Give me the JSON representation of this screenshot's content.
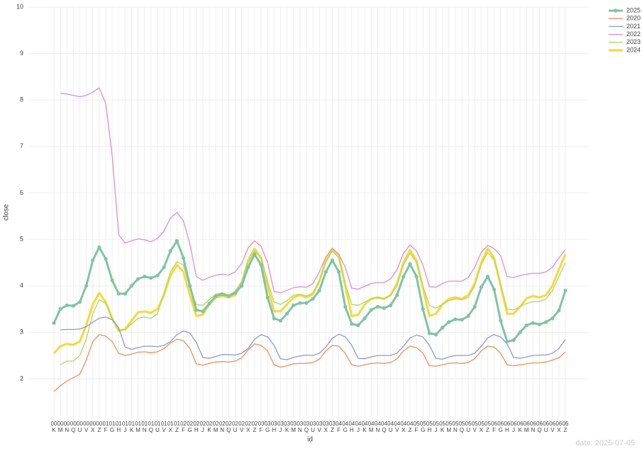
{
  "chart_data": {
    "type": "line",
    "xlabel": "id",
    "ylabel": "close",
    "watermark": "date: 2025-07-05",
    "ylim": [
      1.1,
      10
    ],
    "yticks": [
      2,
      3,
      4,
      5,
      6,
      7,
      8,
      9,
      10
    ],
    "grid": true,
    "legend": "top-right",
    "categories": [
      [
        "00",
        "K"
      ],
      [
        "00",
        "M"
      ],
      [
        "00",
        "N"
      ],
      [
        "00",
        "Q"
      ],
      [
        "00",
        "U"
      ],
      [
        "00",
        "V"
      ],
      [
        "00",
        "X"
      ],
      [
        "00",
        "Z"
      ],
      [
        "01",
        "F"
      ],
      [
        "01",
        "G"
      ],
      [
        "01",
        "H"
      ],
      [
        "01",
        "J"
      ],
      [
        "01",
        "K"
      ],
      [
        "01",
        "M"
      ],
      [
        "01",
        "N"
      ],
      [
        "01",
        "Q"
      ],
      [
        "01",
        "U"
      ],
      [
        "01",
        "V"
      ],
      [
        "01",
        "X"
      ],
      [
        "01",
        "Z"
      ],
      [
        "02",
        "F"
      ],
      [
        "02",
        "G"
      ],
      [
        "02",
        "H"
      ],
      [
        "02",
        "J"
      ],
      [
        "02",
        "K"
      ],
      [
        "02",
        "M"
      ],
      [
        "02",
        "N"
      ],
      [
        "02",
        "Q"
      ],
      [
        "02",
        "U"
      ],
      [
        "02",
        "V"
      ],
      [
        "02",
        "X"
      ],
      [
        "02",
        "Z"
      ],
      [
        "03",
        "F"
      ],
      [
        "03",
        "G"
      ],
      [
        "03",
        "H"
      ],
      [
        "03",
        "J"
      ],
      [
        "03",
        "K"
      ],
      [
        "03",
        "M"
      ],
      [
        "03",
        "N"
      ],
      [
        "03",
        "Q"
      ],
      [
        "03",
        "U"
      ],
      [
        "03",
        "V"
      ],
      [
        "03",
        "X"
      ],
      [
        "03",
        "Z"
      ],
      [
        "04",
        "F"
      ],
      [
        "04",
        "G"
      ],
      [
        "04",
        "H"
      ],
      [
        "04",
        "J"
      ],
      [
        "04",
        "K"
      ],
      [
        "04",
        "M"
      ],
      [
        "04",
        "N"
      ],
      [
        "04",
        "Q"
      ],
      [
        "04",
        "U"
      ],
      [
        "04",
        "V"
      ],
      [
        "04",
        "X"
      ],
      [
        "04",
        "Z"
      ],
      [
        "05",
        "F"
      ],
      [
        "05",
        "G"
      ],
      [
        "05",
        "H"
      ],
      [
        "05",
        "J"
      ],
      [
        "05",
        "K"
      ],
      [
        "05",
        "M"
      ],
      [
        "05",
        "N"
      ],
      [
        "05",
        "Q"
      ],
      [
        "05",
        "U"
      ],
      [
        "05",
        "V"
      ],
      [
        "05",
        "X"
      ],
      [
        "05",
        "Z"
      ],
      [
        "06",
        "F"
      ],
      [
        "06",
        "G"
      ],
      [
        "06",
        "H"
      ],
      [
        "06",
        "J"
      ],
      [
        "06",
        "K"
      ],
      [
        "06",
        "M"
      ],
      [
        "06",
        "N"
      ],
      [
        "06",
        "Q"
      ],
      [
        "06",
        "U"
      ],
      [
        "06",
        "V"
      ],
      [
        "06",
        "X"
      ],
      [
        "06",
        "Z"
      ]
    ],
    "series": [
      {
        "name": "2025",
        "color": "#7fc4a4",
        "width": 3,
        "markers": true,
        "values": [
          3.2,
          3.5,
          3.58,
          3.57,
          3.65,
          4.0,
          4.55,
          4.83,
          4.58,
          4.12,
          3.83,
          3.83,
          4.0,
          4.15,
          4.2,
          4.17,
          4.22,
          4.4,
          4.75,
          4.97,
          4.6,
          4.0,
          3.48,
          3.45,
          3.62,
          3.78,
          3.82,
          3.78,
          3.85,
          4.0,
          4.4,
          4.68,
          4.45,
          3.75,
          3.3,
          3.25,
          3.4,
          3.58,
          3.63,
          3.63,
          3.72,
          3.9,
          4.3,
          4.55,
          4.3,
          3.55,
          3.18,
          3.15,
          3.3,
          3.48,
          3.55,
          3.52,
          3.58,
          3.8,
          4.2,
          4.47,
          4.2,
          3.5,
          2.98,
          2.95,
          3.1,
          3.22,
          3.28,
          3.27,
          3.35,
          3.55,
          3.97,
          4.2,
          3.92,
          3.25,
          2.8,
          2.83,
          3.0,
          3.15,
          3.2,
          3.17,
          3.22,
          3.3,
          3.47,
          3.9
        ]
      },
      {
        "name": "2020",
        "color": "#f28e5e",
        "width": 1.3,
        "markers": false,
        "values": [
          1.73,
          1.85,
          1.95,
          2.02,
          2.1,
          2.4,
          2.8,
          2.95,
          2.92,
          2.8,
          2.55,
          2.5,
          2.53,
          2.57,
          2.58,
          2.56,
          2.58,
          2.65,
          2.77,
          2.85,
          2.82,
          2.65,
          2.32,
          2.29,
          2.33,
          2.36,
          2.37,
          2.36,
          2.38,
          2.45,
          2.62,
          2.75,
          2.72,
          2.6,
          2.3,
          2.25,
          2.28,
          2.32,
          2.33,
          2.33,
          2.35,
          2.42,
          2.6,
          2.72,
          2.7,
          2.55,
          2.3,
          2.27,
          2.3,
          2.33,
          2.34,
          2.33,
          2.35,
          2.43,
          2.6,
          2.7,
          2.67,
          2.55,
          2.28,
          2.27,
          2.3,
          2.33,
          2.34,
          2.33,
          2.35,
          2.43,
          2.6,
          2.7,
          2.68,
          2.55,
          2.3,
          2.28,
          2.3,
          2.32,
          2.34,
          2.34,
          2.36,
          2.4,
          2.45,
          2.58
        ]
      },
      {
        "name": "2021",
        "color": "#8e9bcc",
        "width": 1.3,
        "markers": false,
        "values": [
          null,
          3.05,
          3.06,
          3.06,
          3.07,
          3.12,
          3.22,
          3.3,
          3.33,
          3.27,
          3.1,
          2.68,
          2.63,
          2.67,
          2.7,
          2.7,
          2.69,
          2.72,
          2.8,
          2.95,
          3.03,
          2.98,
          2.78,
          2.46,
          2.44,
          2.48,
          2.52,
          2.52,
          2.51,
          2.55,
          2.65,
          2.85,
          2.95,
          2.9,
          2.72,
          2.43,
          2.41,
          2.46,
          2.49,
          2.51,
          2.5,
          2.55,
          2.68,
          2.87,
          2.96,
          2.9,
          2.72,
          2.44,
          2.43,
          2.47,
          2.5,
          2.5,
          2.5,
          2.55,
          2.7,
          2.88,
          2.94,
          2.9,
          2.72,
          2.44,
          2.42,
          2.47,
          2.5,
          2.5,
          2.5,
          2.55,
          2.7,
          2.88,
          2.95,
          2.9,
          2.75,
          2.46,
          2.44,
          2.47,
          2.5,
          2.51,
          2.51,
          2.55,
          2.65,
          2.84
        ]
      },
      {
        "name": "2022",
        "color": "#e48ccc",
        "width": 1.3,
        "markers": false,
        "values": [
          null,
          8.14,
          8.13,
          8.1,
          8.07,
          8.1,
          8.17,
          8.26,
          7.93,
          6.8,
          5.1,
          4.92,
          4.97,
          5.01,
          4.99,
          4.95,
          5.02,
          5.18,
          5.46,
          5.58,
          5.4,
          4.9,
          4.2,
          4.12,
          4.18,
          4.23,
          4.25,
          4.23,
          4.3,
          4.48,
          4.82,
          4.97,
          4.85,
          4.5,
          3.88,
          3.85,
          3.9,
          3.96,
          3.98,
          3.97,
          4.05,
          4.3,
          4.62,
          4.8,
          4.68,
          4.4,
          3.95,
          3.93,
          3.99,
          4.05,
          4.07,
          4.07,
          4.15,
          4.35,
          4.7,
          4.88,
          4.75,
          4.45,
          3.98,
          3.97,
          4.05,
          4.1,
          4.1,
          4.1,
          4.18,
          4.4,
          4.72,
          4.87,
          4.8,
          4.65,
          4.2,
          4.18,
          4.22,
          4.25,
          4.27,
          4.27,
          4.3,
          4.4,
          4.6,
          4.78
        ]
      },
      {
        "name": "2023",
        "color": "#b3d65a",
        "width": 1.3,
        "markers": false,
        "values": [
          null,
          2.3,
          2.38,
          2.38,
          2.5,
          2.85,
          3.4,
          3.7,
          3.62,
          3.3,
          3.05,
          3.05,
          3.18,
          3.3,
          3.33,
          3.3,
          3.4,
          3.85,
          4.3,
          4.52,
          4.45,
          3.95,
          3.6,
          3.58,
          3.7,
          3.82,
          3.85,
          3.8,
          3.88,
          4.1,
          4.5,
          4.75,
          4.6,
          4.1,
          3.65,
          3.6,
          3.68,
          3.8,
          3.82,
          3.78,
          3.85,
          4.1,
          4.5,
          4.75,
          4.6,
          4.05,
          3.6,
          3.58,
          3.65,
          3.72,
          3.75,
          3.72,
          3.8,
          4.0,
          4.45,
          4.7,
          4.5,
          4.0,
          3.58,
          3.52,
          3.6,
          3.68,
          3.72,
          3.7,
          3.75,
          4.0,
          4.45,
          4.72,
          4.55,
          4.05,
          3.5,
          3.48,
          3.55,
          3.62,
          3.66,
          3.66,
          3.72,
          3.9,
          4.2,
          4.5
        ]
      },
      {
        "name": "2024",
        "color": "#f7d83a",
        "width": 3,
        "markers": false,
        "values": [
          2.55,
          2.7,
          2.75,
          2.73,
          2.8,
          3.15,
          3.6,
          3.85,
          3.65,
          3.3,
          3.03,
          3.07,
          3.25,
          3.43,
          3.45,
          3.42,
          3.5,
          3.8,
          4.22,
          4.45,
          4.3,
          3.8,
          3.35,
          3.38,
          3.6,
          3.75,
          3.78,
          3.75,
          3.8,
          4.05,
          4.55,
          4.8,
          4.6,
          4.0,
          3.45,
          3.45,
          3.6,
          3.75,
          3.8,
          3.75,
          3.82,
          4.1,
          4.55,
          4.8,
          4.65,
          4.0,
          3.35,
          3.38,
          3.6,
          3.72,
          3.75,
          3.72,
          3.8,
          4.05,
          4.5,
          4.77,
          4.55,
          3.95,
          3.35,
          3.4,
          3.6,
          3.72,
          3.75,
          3.72,
          3.8,
          4.05,
          4.5,
          4.8,
          4.6,
          4.0,
          3.4,
          3.4,
          3.55,
          3.73,
          3.78,
          3.75,
          3.8,
          4.0,
          4.35,
          4.68
        ]
      }
    ]
  }
}
